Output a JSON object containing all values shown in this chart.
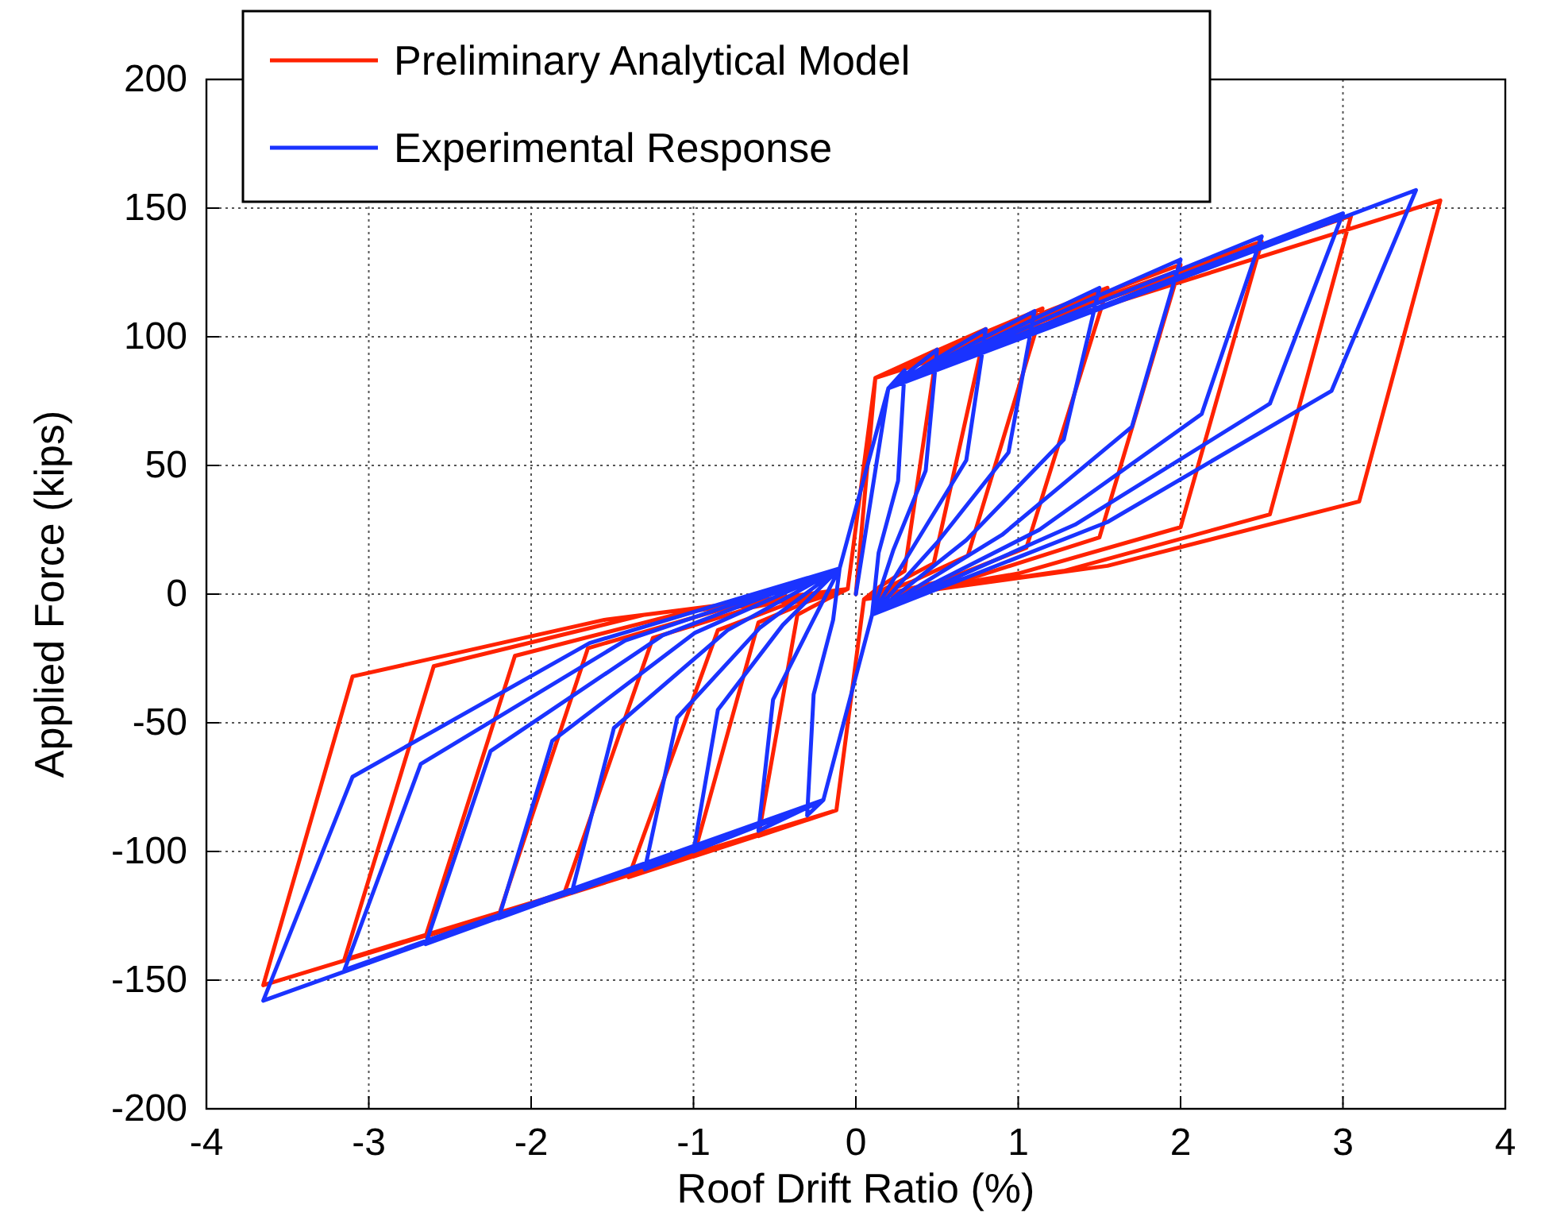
{
  "chart_data": {
    "type": "line",
    "xlabel": "Roof Drift Ratio (%)",
    "ylabel": "Applied Force (kips)",
    "xlim": [
      -4,
      4
    ],
    "xticks": [
      -4,
      -3,
      -2,
      -1,
      0,
      1,
      2,
      3,
      4
    ],
    "ylim": [
      -200,
      200
    ],
    "yticks": [
      -200,
      -150,
      -100,
      -50,
      0,
      50,
      100,
      150,
      200
    ],
    "grid": true,
    "legend": "top left",
    "series": [
      {
        "name": "Preliminary Analytical Model",
        "color": "#ff2200",
        "x": [
          0,
          0.12,
          0.5,
          0.3,
          0.15,
          0.05,
          -0.12,
          -0.6,
          -0.36,
          -0.18,
          -0.05,
          0.12,
          0.8,
          0.48,
          0.24,
          0.05,
          -0.12,
          -1.0,
          -0.6,
          -0.3,
          -0.05,
          0.12,
          1.15,
          0.69,
          0.35,
          0.05,
          -0.12,
          -1.4,
          -0.85,
          -0.43,
          -0.05,
          0.12,
          1.55,
          1.05,
          0.53,
          0.05,
          -0.12,
          -1.8,
          -1.25,
          -0.63,
          -0.05,
          0.12,
          2.0,
          1.5,
          0.75,
          0.05,
          -0.12,
          -2.2,
          -1.65,
          -0.83,
          -0.05,
          0.12,
          2.5,
          2.0,
          1.0,
          0.05,
          -0.12,
          -2.65,
          -2.1,
          -1.05,
          -0.05,
          0.12,
          3.05,
          2.55,
          1.28,
          0.05,
          -0.12,
          -3.15,
          -2.6,
          -1.3,
          -0.05,
          0.12,
          3.6,
          3.1,
          1.55,
          0.05,
          -0.12,
          -3.65,
          -3.1,
          -1.55,
          -0.05
        ],
        "values": [
          0,
          84,
          95,
          9,
          3,
          -2,
          -84,
          -94,
          -8,
          -2,
          2,
          84,
          103,
          12,
          4,
          -2,
          -84,
          -102,
          -11,
          -3,
          2,
          84,
          111,
          15,
          5,
          -2,
          -84,
          -110,
          -14,
          -4,
          2,
          84,
          119,
          18,
          5,
          -2,
          -84,
          -117,
          -17,
          -5,
          2,
          84,
          128,
          22,
          7,
          -2,
          -84,
          -125,
          -21,
          -6,
          2,
          84,
          137,
          26,
          8,
          -2,
          -84,
          -133,
          -24,
          -7,
          2,
          84,
          147,
          31,
          9,
          -2,
          -84,
          -142,
          -28,
          -8,
          2,
          84,
          153,
          36,
          11,
          -2,
          -84,
          -152,
          -32,
          -10,
          2
        ]
      },
      {
        "name": "Experimental Response",
        "color": "#1a33ff",
        "x": [
          0,
          0.2,
          0.3,
          0.26,
          0.14,
          0.1,
          -0.2,
          -0.3,
          -0.26,
          -0.14,
          -0.1,
          0.2,
          0.5,
          0.43,
          0.23,
          0.1,
          -0.2,
          -0.6,
          -0.51,
          -0.27,
          -0.1,
          0.2,
          0.8,
          0.68,
          0.36,
          0.1,
          -0.2,
          -1.0,
          -0.85,
          -0.45,
          -0.1,
          0.2,
          1.1,
          0.94,
          0.5,
          0.1,
          -0.2,
          -1.3,
          -1.1,
          -0.59,
          -0.1,
          0.2,
          1.5,
          1.28,
          0.68,
          0.1,
          -0.2,
          -1.75,
          -1.49,
          -0.79,
          -0.1,
          0.2,
          2.0,
          1.7,
          0.9,
          0.1,
          -0.2,
          -2.2,
          -1.87,
          -0.99,
          -0.1,
          0.2,
          2.5,
          2.13,
          1.13,
          0.1,
          -0.2,
          -2.65,
          -2.25,
          -1.19,
          -0.1,
          0.2,
          3.0,
          2.55,
          1.35,
          0.1,
          -0.2,
          -3.15,
          -2.68,
          -1.42,
          -0.1,
          0.2,
          3.45,
          2.93,
          1.55,
          0.1,
          -0.2,
          -3.65,
          -3.1,
          -1.64,
          -0.1
        ],
        "values": [
          0,
          80,
          87,
          44,
          16,
          -8,
          -80,
          -86,
          -39,
          -10,
          10,
          80,
          95,
          48,
          17,
          -8,
          -80,
          -92,
          -41,
          -11,
          10,
          80,
          103,
          52,
          19,
          -8,
          -80,
          -100,
          -45,
          -12,
          10,
          80,
          110,
          55,
          20,
          -8,
          -80,
          -107,
          -48,
          -13,
          10,
          80,
          119,
          60,
          21,
          -8,
          -80,
          -116,
          -52,
          -14,
          10,
          80,
          130,
          65,
          23,
          -8,
          -80,
          -126,
          -57,
          -15,
          10,
          80,
          139,
          70,
          25,
          -8,
          -80,
          -136,
          -61,
          -16,
          10,
          80,
          148,
          74,
          27,
          -8,
          -80,
          -146,
          -66,
          -18,
          10,
          80,
          157,
          79,
          28,
          -8,
          -80,
          -158,
          -71,
          -19,
          10
        ]
      }
    ]
  }
}
